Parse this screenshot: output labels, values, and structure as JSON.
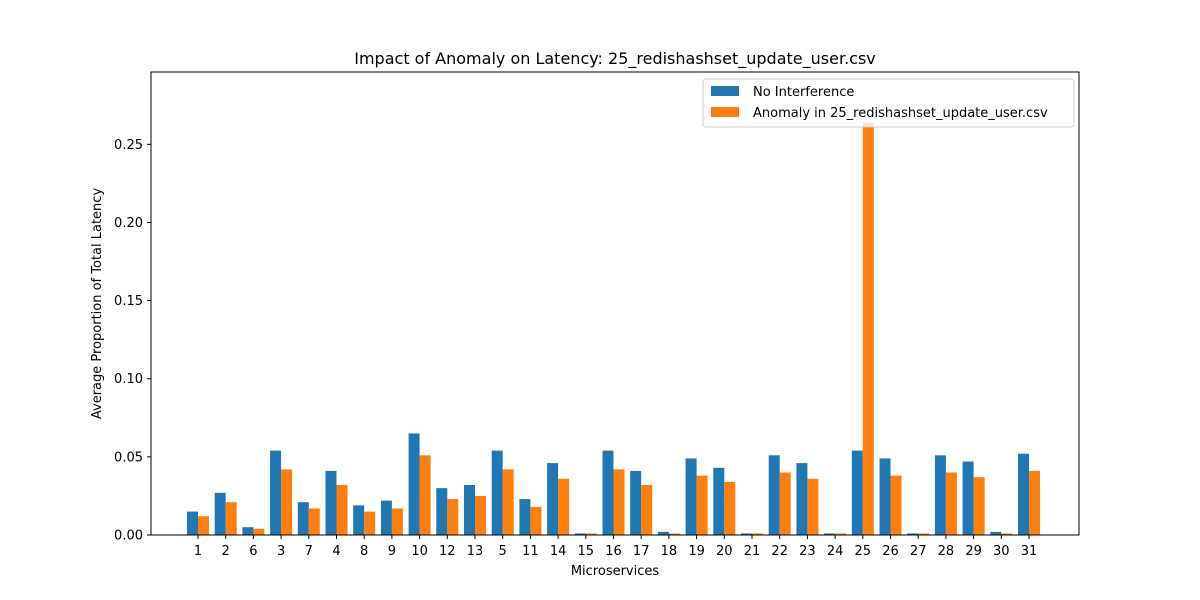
{
  "chart_data": {
    "type": "bar",
    "title": "Impact of Anomaly on Latency: 25_redishashset_update_user.csv",
    "xlabel": "Microservices",
    "ylabel": "Average Proportion of Total Latency",
    "ylim": [
      0,
      0.3
    ],
    "yticks": [
      "0.00",
      "0.05",
      "0.10",
      "0.15",
      "0.20",
      "0.25"
    ],
    "ytick_values": [
      0,
      0.05,
      0.1,
      0.15,
      0.2,
      0.25
    ],
    "grid": false,
    "legend_position": "top-right",
    "categories": [
      "1",
      "2",
      "6",
      "3",
      "7",
      "4",
      "8",
      "9",
      "10",
      "12",
      "13",
      "5",
      "11",
      "14",
      "15",
      "16",
      "17",
      "18",
      "19",
      "20",
      "21",
      "22",
      "23",
      "24",
      "25",
      "26",
      "27",
      "28",
      "29",
      "30",
      "31"
    ],
    "series": [
      {
        "name": "No Interference",
        "color": "#1f77b4",
        "values": [
          0.015,
          0.027,
          0.005,
          0.054,
          0.021,
          0.041,
          0.019,
          0.022,
          0.065,
          0.03,
          0.032,
          0.054,
          0.023,
          0.046,
          0.001,
          0.054,
          0.041,
          0.002,
          0.049,
          0.043,
          0.001,
          0.051,
          0.046,
          0.001,
          0.054,
          0.049,
          0.001,
          0.051,
          0.047,
          0.002,
          0.052
        ]
      },
      {
        "name": "Anomaly in 25_redishashset_update_user.csv",
        "color": "#ff7f0e",
        "values": [
          0.012,
          0.021,
          0.004,
          0.042,
          0.017,
          0.032,
          0.015,
          0.017,
          0.051,
          0.023,
          0.025,
          0.042,
          0.018,
          0.036,
          0.001,
          0.042,
          0.032,
          0.001,
          0.038,
          0.034,
          0.001,
          0.04,
          0.036,
          0.001,
          0.264,
          0.038,
          0.001,
          0.04,
          0.037,
          0.001,
          0.041
        ]
      }
    ]
  }
}
